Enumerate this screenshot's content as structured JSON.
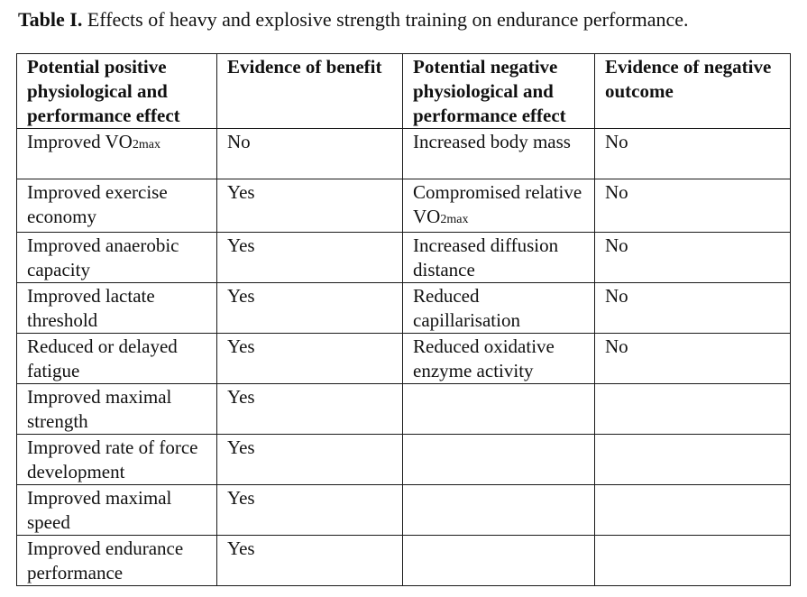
{
  "caption": {
    "label": "Table I.",
    "text": " Effects of heavy and explosive strength training on endurance performance."
  },
  "table": {
    "headers": [
      "Potential positive physiological and performance effect",
      "Evidence of benefit",
      "Potential negative physiological and performance effect",
      "Evidence of negative outcome"
    ],
    "rows": [
      {
        "pos_effect": "Improved VO",
        "pos_effect_sub": "2max",
        "benefit": "No",
        "neg_effect": "Increased body mass",
        "neg_effect_sub": "",
        "neg_outcome": "No"
      },
      {
        "pos_effect": "Improved exercise economy",
        "pos_effect_sub": "",
        "benefit": "Yes",
        "neg_effect": "Compromised relative VO",
        "neg_effect_sub": "2max",
        "neg_outcome": "No"
      },
      {
        "pos_effect": "Improved anaerobic capacity",
        "pos_effect_sub": "",
        "benefit": "Yes",
        "neg_effect": "Increased diffusion distance",
        "neg_effect_sub": "",
        "neg_outcome": "No"
      },
      {
        "pos_effect": "Improved lactate threshold",
        "pos_effect_sub": "",
        "benefit": "Yes",
        "neg_effect": "Reduced capillarisation",
        "neg_effect_sub": "",
        "neg_outcome": "No"
      },
      {
        "pos_effect": "Reduced or delayed fatigue",
        "pos_effect_sub": "",
        "benefit": "Yes",
        "neg_effect": "Reduced oxidative enzyme activity",
        "neg_effect_sub": "",
        "neg_outcome": "No"
      },
      {
        "pos_effect": "Improved maximal strength",
        "pos_effect_sub": "",
        "benefit": "Yes",
        "neg_effect": "",
        "neg_effect_sub": "",
        "neg_outcome": ""
      },
      {
        "pos_effect": "Improved rate of force development",
        "pos_effect_sub": "",
        "benefit": "Yes",
        "neg_effect": "",
        "neg_effect_sub": "",
        "neg_outcome": ""
      },
      {
        "pos_effect": "Improved maximal speed",
        "pos_effect_sub": "",
        "benefit": "Yes",
        "neg_effect": "",
        "neg_effect_sub": "",
        "neg_outcome": ""
      },
      {
        "pos_effect": "Improved endurance performance",
        "pos_effect_sub": "",
        "benefit": "Yes",
        "neg_effect": "",
        "neg_effect_sub": "",
        "neg_outcome": ""
      }
    ]
  }
}
